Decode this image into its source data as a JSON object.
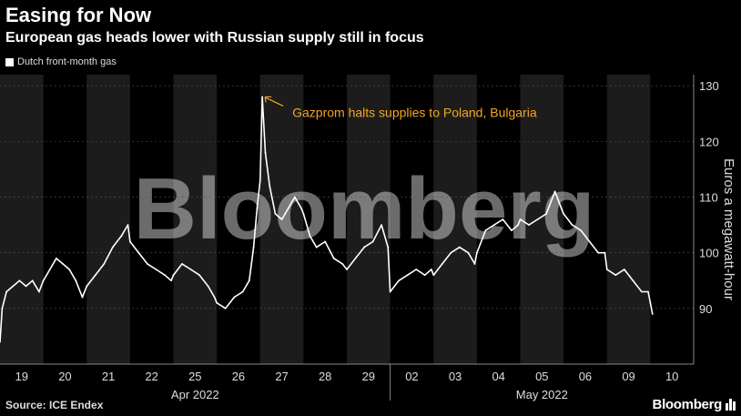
{
  "header": {
    "title": "Easing for Now",
    "subtitle": "European gas heads lower with Russian supply still in focus"
  },
  "legend": {
    "label": "Dutch front-month gas"
  },
  "footer": {
    "source": "Source: ICE Endex",
    "brand": "Bloomberg"
  },
  "watermark": "Bloomberg",
  "colors": {
    "background": "#000000",
    "band": "#1c1c1c",
    "line": "#ffffff",
    "annotation": "#f5a623",
    "grid": "#555555"
  },
  "chart_data": {
    "type": "line",
    "title": "Easing for Now",
    "subtitle": "European gas heads lower with Russian supply still in focus",
    "xlabel": "",
    "ylabel": "Euros a megawatt-hour",
    "ylim": [
      80,
      132
    ],
    "yticks": [
      90,
      100,
      110,
      120,
      130
    ],
    "grid": true,
    "legend_position": "top-left",
    "days": [
      "19",
      "20",
      "21",
      "22",
      "25",
      "26",
      "27",
      "28",
      "29",
      "02",
      "03",
      "04",
      "05",
      "06",
      "09",
      "10"
    ],
    "months": [
      {
        "label": "Apr 2022",
        "start_day": "19",
        "end_day": "29"
      },
      {
        "label": "May 2022",
        "start_day": "02",
        "end_day": "10"
      }
    ],
    "series": [
      {
        "name": "Dutch front-month gas",
        "points": [
          [
            "19",
            0.0,
            84
          ],
          [
            "19",
            0.05,
            90
          ],
          [
            "19",
            0.15,
            93
          ],
          [
            "19",
            0.3,
            94
          ],
          [
            "19",
            0.45,
            95
          ],
          [
            "19",
            0.6,
            94
          ],
          [
            "19",
            0.75,
            95
          ],
          [
            "19",
            0.9,
            93
          ],
          [
            "20",
            0.0,
            95
          ],
          [
            "20",
            0.15,
            97
          ],
          [
            "20",
            0.3,
            99
          ],
          [
            "20",
            0.45,
            98
          ],
          [
            "20",
            0.6,
            97
          ],
          [
            "20",
            0.75,
            95
          ],
          [
            "20",
            0.9,
            92
          ],
          [
            "21",
            0.0,
            94
          ],
          [
            "21",
            0.2,
            96
          ],
          [
            "21",
            0.4,
            98
          ],
          [
            "21",
            0.6,
            101
          ],
          [
            "21",
            0.8,
            103
          ],
          [
            "21",
            0.95,
            105
          ],
          [
            "22",
            0.0,
            102
          ],
          [
            "22",
            0.2,
            100
          ],
          [
            "22",
            0.4,
            98
          ],
          [
            "22",
            0.6,
            97
          ],
          [
            "22",
            0.8,
            96
          ],
          [
            "22",
            0.95,
            95
          ],
          [
            "25",
            0.0,
            96
          ],
          [
            "25",
            0.2,
            98
          ],
          [
            "25",
            0.4,
            97
          ],
          [
            "25",
            0.6,
            96
          ],
          [
            "25",
            0.8,
            94
          ],
          [
            "25",
            0.95,
            92
          ],
          [
            "26",
            0.0,
            91
          ],
          [
            "26",
            0.2,
            90
          ],
          [
            "26",
            0.4,
            92
          ],
          [
            "26",
            0.6,
            93
          ],
          [
            "26",
            0.75,
            95
          ],
          [
            "26",
            0.85,
            101
          ],
          [
            "26",
            0.93,
            108
          ],
          [
            "27",
            0.0,
            113
          ],
          [
            "27",
            0.05,
            128
          ],
          [
            "27",
            0.12,
            118
          ],
          [
            "27",
            0.22,
            112
          ],
          [
            "27",
            0.35,
            107
          ],
          [
            "27",
            0.5,
            106
          ],
          [
            "27",
            0.65,
            108
          ],
          [
            "27",
            0.8,
            110
          ],
          [
            "27",
            0.95,
            108
          ],
          [
            "28",
            0.0,
            107
          ],
          [
            "28",
            0.15,
            103
          ],
          [
            "28",
            0.3,
            101
          ],
          [
            "28",
            0.5,
            102
          ],
          [
            "28",
            0.7,
            99
          ],
          [
            "28",
            0.9,
            98
          ],
          [
            "29",
            0.0,
            97
          ],
          [
            "29",
            0.2,
            99
          ],
          [
            "29",
            0.4,
            101
          ],
          [
            "29",
            0.6,
            102
          ],
          [
            "29",
            0.8,
            105
          ],
          [
            "29",
            0.95,
            101
          ],
          [
            "02",
            0.0,
            93
          ],
          [
            "02",
            0.2,
            95
          ],
          [
            "02",
            0.4,
            96
          ],
          [
            "02",
            0.6,
            97
          ],
          [
            "02",
            0.8,
            96
          ],
          [
            "02",
            0.95,
            97
          ],
          [
            "03",
            0.0,
            96
          ],
          [
            "03",
            0.2,
            98
          ],
          [
            "03",
            0.4,
            100
          ],
          [
            "03",
            0.6,
            101
          ],
          [
            "03",
            0.8,
            100
          ],
          [
            "03",
            0.95,
            98
          ],
          [
            "04",
            0.0,
            100
          ],
          [
            "04",
            0.2,
            104
          ],
          [
            "04",
            0.4,
            105
          ],
          [
            "04",
            0.6,
            106
          ],
          [
            "04",
            0.8,
            104
          ],
          [
            "04",
            0.95,
            105
          ],
          [
            "05",
            0.0,
            106
          ],
          [
            "05",
            0.2,
            105
          ],
          [
            "05",
            0.4,
            106
          ],
          [
            "05",
            0.6,
            107
          ],
          [
            "05",
            0.8,
            111
          ],
          [
            "05",
            0.95,
            108
          ],
          [
            "06",
            0.0,
            107
          ],
          [
            "06",
            0.2,
            105
          ],
          [
            "06",
            0.4,
            104
          ],
          [
            "06",
            0.6,
            102
          ],
          [
            "06",
            0.8,
            100
          ],
          [
            "06",
            0.95,
            100
          ],
          [
            "09",
            0.0,
            97
          ],
          [
            "09",
            0.2,
            96
          ],
          [
            "09",
            0.4,
            97
          ],
          [
            "09",
            0.6,
            95
          ],
          [
            "09",
            0.8,
            93
          ],
          [
            "09",
            0.95,
            93
          ],
          [
            "10",
            0.0,
            91
          ],
          [
            "10",
            0.05,
            89
          ]
        ]
      }
    ],
    "annotations": [
      {
        "text": "Gazprom halts supplies to Poland, Bulgaria",
        "day": "27",
        "fraction": 0.05,
        "value": 128
      }
    ]
  }
}
